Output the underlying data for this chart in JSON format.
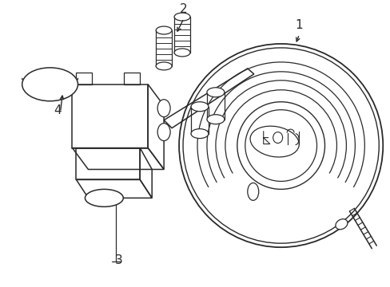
{
  "bg_color": "#ffffff",
  "line_color": "#2a2a2a",
  "lw": 1.1,
  "fig_width": 4.89,
  "fig_height": 3.6,
  "dpi": 100
}
